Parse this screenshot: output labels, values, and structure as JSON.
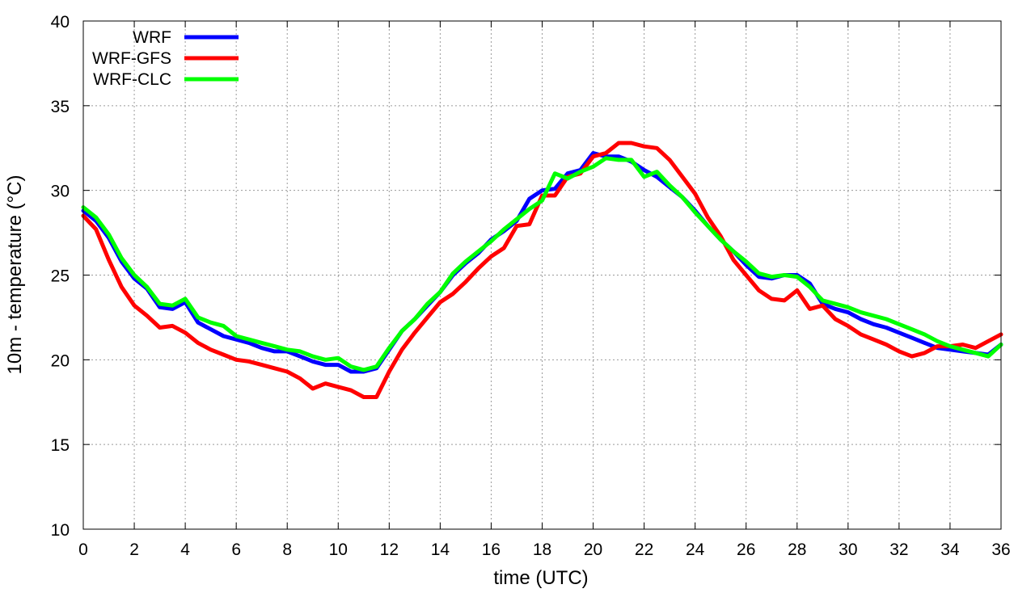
{
  "chart_data": {
    "type": "line",
    "xlabel": "time (UTC)",
    "ylabel": "10m - temperature (°C)",
    "xlim": [
      0,
      36
    ],
    "ylim": [
      10,
      40
    ],
    "xticks": [
      0,
      2,
      4,
      6,
      8,
      10,
      12,
      14,
      16,
      18,
      20,
      22,
      24,
      26,
      28,
      30,
      32,
      34,
      36
    ],
    "yticks": [
      10,
      15,
      20,
      25,
      30,
      35,
      40
    ],
    "xtick_labels": [
      "0",
      "2",
      "4",
      "6",
      "8",
      "10",
      "12",
      "14",
      "16",
      "18",
      "20",
      "22",
      "24",
      "26",
      "28",
      "30",
      "32",
      "34",
      "36"
    ],
    "ytick_labels": [
      "10",
      "15",
      "20",
      "25",
      "30",
      "35",
      "40"
    ],
    "grid": true,
    "legend_position": "top-left",
    "series": [
      {
        "name": "WRF",
        "color": "#0000ff",
        "x": [
          0,
          0.5,
          1,
          1.5,
          2,
          2.5,
          3,
          3.5,
          4,
          4.5,
          5,
          5.5,
          6,
          6.5,
          7,
          7.5,
          8,
          8.5,
          9,
          9.5,
          10,
          10.5,
          11,
          11.5,
          12,
          12.5,
          13,
          13.5,
          14,
          14.5,
          15,
          15.5,
          16,
          16.5,
          17,
          17.5,
          18,
          18.5,
          19,
          19.5,
          20,
          20.5,
          21,
          21.5,
          22,
          22.5,
          23,
          23.5,
          24,
          24.5,
          25,
          25.5,
          26,
          26.5,
          27,
          27.5,
          28,
          28.5,
          29,
          29.5,
          30,
          30.5,
          31,
          31.5,
          32,
          32.5,
          33,
          33.5,
          34,
          34.5,
          35,
          35.5,
          36
        ],
        "y": [
          28.8,
          28.2,
          27.2,
          25.8,
          24.8,
          24.2,
          23.1,
          23.0,
          23.4,
          22.2,
          21.8,
          21.4,
          21.2,
          21.0,
          20.7,
          20.5,
          20.5,
          20.2,
          19.9,
          19.7,
          19.7,
          19.3,
          19.3,
          19.5,
          20.6,
          21.7,
          22.4,
          23.2,
          24.0,
          25.0,
          25.7,
          26.3,
          27.1,
          27.6,
          28.2,
          29.5,
          30.0,
          30.1,
          31.0,
          31.2,
          32.2,
          32.0,
          32.0,
          31.7,
          31.2,
          30.8,
          30.2,
          29.6,
          28.8,
          27.9,
          27.1,
          26.4,
          25.6,
          24.9,
          24.8,
          25.0,
          25.0,
          24.5,
          23.3,
          23.0,
          22.8,
          22.4,
          22.1,
          21.9,
          21.6,
          21.3,
          21.0,
          20.7,
          20.6,
          20.5,
          20.4,
          20.3,
          20.9
        ]
      },
      {
        "name": "WRF-GFS",
        "color": "#ff0000",
        "x": [
          0,
          0.5,
          1,
          1.5,
          2,
          2.5,
          3,
          3.5,
          4,
          4.5,
          5,
          5.5,
          6,
          6.5,
          7,
          7.5,
          8,
          8.5,
          9,
          9.5,
          10,
          10.5,
          11,
          11.5,
          12,
          12.5,
          13,
          13.5,
          14,
          14.5,
          15,
          15.5,
          16,
          16.5,
          17,
          17.5,
          18,
          18.5,
          19,
          19.5,
          20,
          20.5,
          21,
          21.5,
          22,
          22.5,
          23,
          23.5,
          24,
          24.5,
          25,
          25.5,
          26,
          26.5,
          27,
          27.5,
          28,
          28.5,
          29,
          29.5,
          30,
          30.5,
          31,
          31.5,
          32,
          32.5,
          33,
          33.5,
          34,
          34.5,
          35,
          35.5,
          36
        ],
        "y": [
          28.5,
          27.7,
          25.9,
          24.3,
          23.2,
          22.6,
          21.9,
          22.0,
          21.6,
          21.0,
          20.6,
          20.3,
          20.0,
          19.9,
          19.7,
          19.5,
          19.3,
          18.9,
          18.3,
          18.6,
          18.4,
          18.2,
          17.8,
          17.8,
          19.3,
          20.6,
          21.6,
          22.5,
          23.4,
          23.9,
          24.6,
          25.4,
          26.1,
          26.6,
          27.9,
          28.0,
          29.7,
          29.7,
          30.8,
          31.0,
          32.0,
          32.2,
          32.8,
          32.8,
          32.6,
          32.5,
          31.8,
          30.8,
          29.8,
          28.4,
          27.3,
          25.9,
          25.0,
          24.1,
          23.6,
          23.5,
          24.1,
          23.0,
          23.2,
          22.4,
          22.0,
          21.5,
          21.2,
          20.9,
          20.5,
          20.2,
          20.4,
          20.8,
          20.8,
          20.9,
          20.7,
          21.1,
          21.5
        ]
      },
      {
        "name": "WRF-CLC",
        "color": "#00ff00",
        "x": [
          0,
          0.5,
          1,
          1.5,
          2,
          2.5,
          3,
          3.5,
          4,
          4.5,
          5,
          5.5,
          6,
          6.5,
          7,
          7.5,
          8,
          8.5,
          9,
          9.5,
          10,
          10.5,
          11,
          11.5,
          12,
          12.5,
          13,
          13.5,
          14,
          14.5,
          15,
          15.5,
          16,
          16.5,
          17,
          17.5,
          18,
          18.5,
          19,
          19.5,
          20,
          20.5,
          21,
          21.5,
          22,
          22.5,
          23,
          23.5,
          24,
          24.5,
          25,
          25.5,
          26,
          26.5,
          27,
          27.5,
          28,
          28.5,
          29,
          29.5,
          30,
          30.5,
          31,
          31.5,
          32,
          32.5,
          33,
          33.5,
          34,
          34.5,
          35,
          35.5,
          36
        ],
        "y": [
          29.0,
          28.4,
          27.4,
          26.0,
          25.0,
          24.3,
          23.3,
          23.2,
          23.6,
          22.5,
          22.2,
          22.0,
          21.4,
          21.2,
          21.0,
          20.8,
          20.6,
          20.5,
          20.2,
          20.0,
          20.1,
          19.6,
          19.4,
          19.6,
          20.7,
          21.7,
          22.4,
          23.3,
          24.0,
          25.1,
          25.8,
          26.4,
          27.0,
          27.7,
          28.3,
          28.9,
          29.4,
          31.0,
          30.7,
          31.1,
          31.4,
          31.9,
          31.8,
          31.8,
          30.8,
          31.1,
          30.3,
          29.6,
          28.7,
          27.9,
          27.1,
          26.4,
          25.8,
          25.1,
          24.9,
          25.0,
          24.9,
          24.3,
          23.5,
          23.3,
          23.1,
          22.8,
          22.6,
          22.4,
          22.1,
          21.8,
          21.5,
          21.1,
          20.8,
          20.6,
          20.4,
          20.2,
          20.9
        ]
      }
    ]
  }
}
